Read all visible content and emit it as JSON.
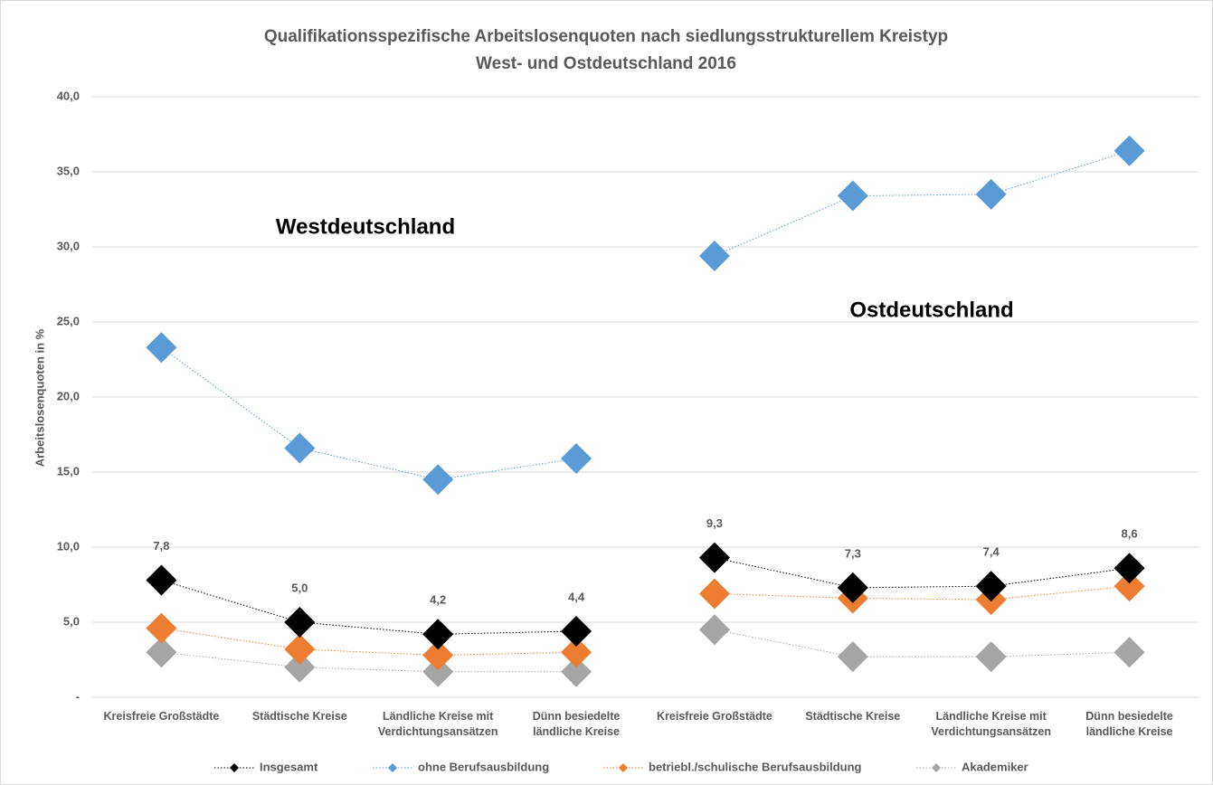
{
  "chart_data": {
    "type": "line",
    "title": "Qualifikationsspezifische Arbeitslosenquoten nach siedlungsstrukturellem Kreistyp",
    "subtitle": "West- und Ostdeutschland 2016",
    "y_label": "Arbeitslosenquoten in %",
    "annotations": [
      "Westdeutschland",
      "Ostdeutschland"
    ],
    "categories": [
      "Kreisfreie Großstädte",
      "Städtische Kreise",
      "Ländliche Kreise mit Verdichtungsansätzen",
      "Dünn besiedelte ländliche Kreise",
      "Kreisfreie Großstädte",
      "Städtische Kreise",
      "Ländliche Kreise mit Verdichtungsansätzen",
      "Dünn besiedelte ländliche Kreise"
    ],
    "series": [
      {
        "name": "Insgesamt",
        "color": "#000000",
        "values": [
          7.8,
          5.0,
          4.2,
          4.4,
          9.3,
          7.3,
          7.4,
          8.6
        ],
        "value_labels": [
          "7,8",
          "5,0",
          "4,2",
          "4,4",
          "9,3",
          "7,3",
          "7,4",
          "8,6"
        ]
      },
      {
        "name": "ohne Berufsausbildung",
        "color": "#5b9bd5",
        "values": [
          23.3,
          16.6,
          14.5,
          15.9,
          29.4,
          33.4,
          33.5,
          36.4
        ]
      },
      {
        "name": "betriebl./schulische Berufsausbildung",
        "color": "#ed7d31",
        "values": [
          4.6,
          3.2,
          2.8,
          3.0,
          6.9,
          6.6,
          6.5,
          7.4
        ]
      },
      {
        "name": "Akademiker",
        "color": "#a5a5a5",
        "values": [
          3.0,
          2.0,
          1.7,
          1.7,
          4.5,
          2.7,
          2.7,
          3.0
        ]
      }
    ],
    "ylim": [
      0,
      40
    ],
    "yticks": [
      {
        "value": 0,
        "label": "-"
      },
      {
        "value": 5,
        "label": "5,0"
      },
      {
        "value": 10,
        "label": "10,0"
      },
      {
        "value": 15,
        "label": "15,0"
      },
      {
        "value": 20,
        "label": "20,0"
      },
      {
        "value": 25,
        "label": "25,0"
      },
      {
        "value": 30,
        "label": "30,0"
      },
      {
        "value": 35,
        "label": "35,0"
      },
      {
        "value": 40,
        "label": "40,0"
      }
    ],
    "grid": true,
    "legend": "bottom"
  }
}
